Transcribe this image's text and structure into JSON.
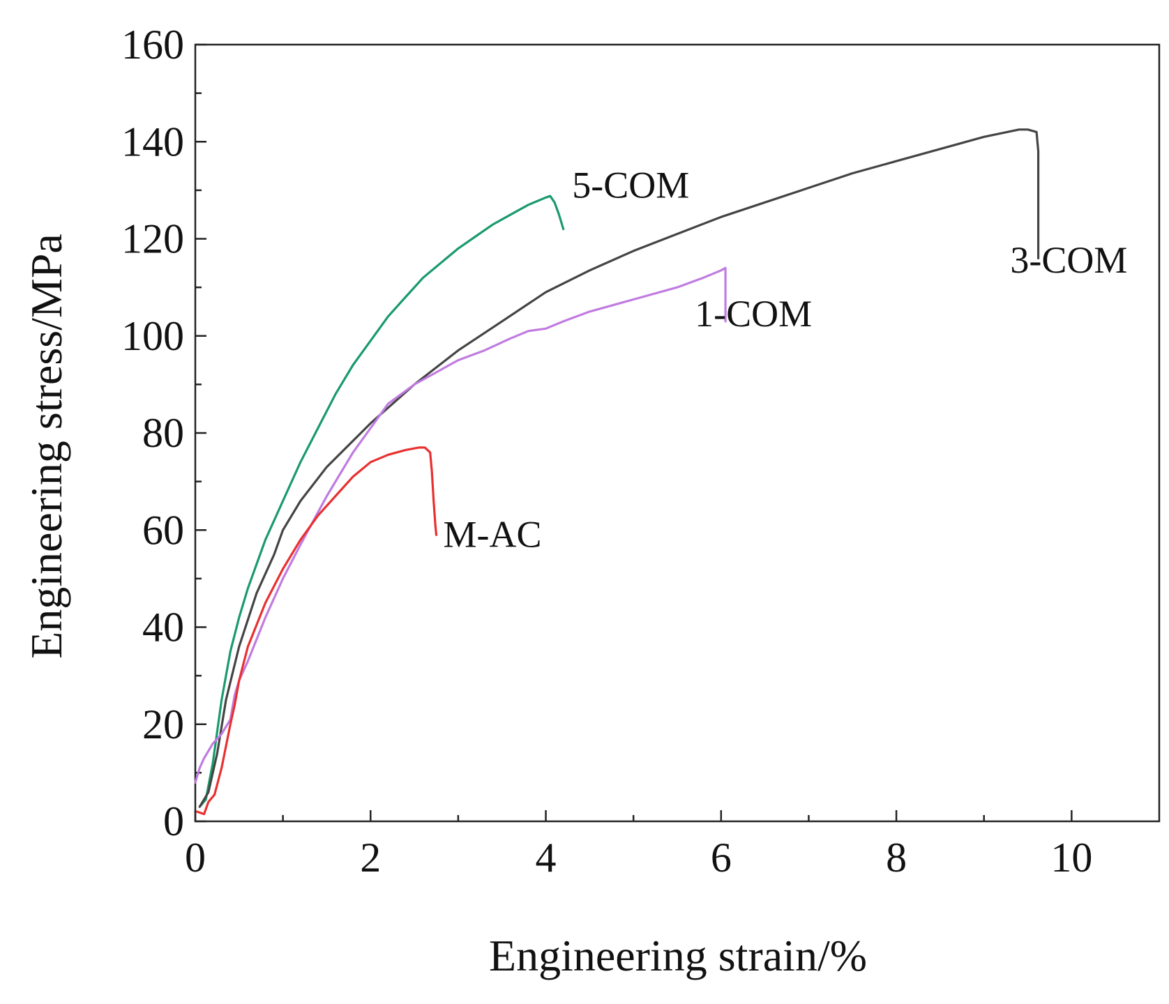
{
  "chart_data": {
    "type": "line",
    "title": "",
    "xlabel": "Engineering strain/%",
    "ylabel": "Engineering stress/MPa",
    "xlim": [
      0,
      11
    ],
    "ylim": [
      0,
      160
    ],
    "x_major_ticks": [
      0,
      2,
      4,
      6,
      8,
      10
    ],
    "x_tick_labels": [
      "0",
      "2",
      "4",
      "6",
      "8",
      "10"
    ],
    "x_minor_ticks": [
      1,
      3,
      5,
      7,
      9
    ],
    "y_major_ticks": [
      0,
      20,
      40,
      60,
      80,
      100,
      120,
      140,
      160
    ],
    "y_tick_labels": [
      "0",
      "20",
      "40",
      "60",
      "80",
      "100",
      "120",
      "140",
      "160"
    ],
    "y_minor_ticks": [
      10,
      30,
      50,
      70,
      90,
      110,
      130,
      150
    ],
    "grid": false,
    "legend": "none",
    "series": [
      {
        "name": "5-COM",
        "color": "#1a9a6c",
        "label_pos": [
          4.3,
          128.5
        ],
        "points": [
          [
            0.05,
            3
          ],
          [
            0.12,
            4.5
          ],
          [
            0.2,
            12
          ],
          [
            0.3,
            25
          ],
          [
            0.4,
            35
          ],
          [
            0.5,
            42
          ],
          [
            0.6,
            48
          ],
          [
            0.8,
            58
          ],
          [
            1.0,
            66
          ],
          [
            1.2,
            74
          ],
          [
            1.4,
            81
          ],
          [
            1.6,
            88
          ],
          [
            1.8,
            94
          ],
          [
            2.0,
            99
          ],
          [
            2.2,
            104
          ],
          [
            2.4,
            108
          ],
          [
            2.6,
            112
          ],
          [
            2.8,
            115
          ],
          [
            3.0,
            118
          ],
          [
            3.2,
            120.5
          ],
          [
            3.4,
            123
          ],
          [
            3.6,
            125
          ],
          [
            3.8,
            127
          ],
          [
            4.0,
            128.5
          ],
          [
            4.05,
            128.8
          ],
          [
            4.1,
            127.5
          ],
          [
            4.15,
            125
          ],
          [
            4.2,
            122
          ]
        ]
      },
      {
        "name": "3-COM",
        "color": "#444444",
        "label_pos": [
          9.3,
          113
        ],
        "points": [
          [
            0.05,
            3
          ],
          [
            0.15,
            6
          ],
          [
            0.25,
            14
          ],
          [
            0.35,
            25
          ],
          [
            0.5,
            36
          ],
          [
            0.7,
            47
          ],
          [
            0.9,
            55
          ],
          [
            1.0,
            60
          ],
          [
            1.2,
            66
          ],
          [
            1.5,
            73
          ],
          [
            2.0,
            82
          ],
          [
            2.5,
            90
          ],
          [
            3.0,
            97
          ],
          [
            3.5,
            103
          ],
          [
            4.0,
            109
          ],
          [
            4.5,
            113.5
          ],
          [
            5.0,
            117.5
          ],
          [
            5.5,
            121
          ],
          [
            6.0,
            124.5
          ],
          [
            6.5,
            127.5
          ],
          [
            7.0,
            130.5
          ],
          [
            7.5,
            133.5
          ],
          [
            8.0,
            136
          ],
          [
            8.5,
            138.5
          ],
          [
            9.0,
            141
          ],
          [
            9.4,
            142.5
          ],
          [
            9.5,
            142.5
          ],
          [
            9.6,
            142
          ],
          [
            9.62,
            138
          ],
          [
            9.62,
            130
          ],
          [
            9.62,
            122
          ],
          [
            9.62,
            116
          ]
        ]
      },
      {
        "name": "1-COM",
        "color": "#c07be0",
        "label_pos": [
          5.7,
          102
        ],
        "points": [
          [
            0.0,
            8
          ],
          [
            0.05,
            11
          ],
          [
            0.1,
            13
          ],
          [
            0.2,
            16
          ],
          [
            0.3,
            18
          ],
          [
            0.4,
            21
          ],
          [
            0.45,
            26
          ],
          [
            0.5,
            29
          ],
          [
            0.6,
            33
          ],
          [
            0.8,
            42
          ],
          [
            1.0,
            50
          ],
          [
            1.2,
            57
          ],
          [
            1.5,
            67
          ],
          [
            1.8,
            76
          ],
          [
            2.0,
            81
          ],
          [
            2.2,
            86
          ],
          [
            2.5,
            90
          ],
          [
            2.8,
            93
          ],
          [
            3.0,
            95
          ],
          [
            3.3,
            97
          ],
          [
            3.6,
            99.5
          ],
          [
            3.8,
            101
          ],
          [
            4.0,
            101.5
          ],
          [
            4.2,
            103
          ],
          [
            4.5,
            105
          ],
          [
            5.0,
            107.5
          ],
          [
            5.5,
            110
          ],
          [
            5.8,
            112
          ],
          [
            6.0,
            113.5
          ],
          [
            6.05,
            114
          ],
          [
            6.05,
            110
          ],
          [
            6.05,
            106
          ],
          [
            6.05,
            103
          ]
        ]
      },
      {
        "name": "M-AC",
        "color": "#e83030",
        "label_pos": [
          2.83,
          56.5
        ],
        "points": [
          [
            0.02,
            2
          ],
          [
            0.1,
            1.5
          ],
          [
            0.15,
            4
          ],
          [
            0.22,
            5.5
          ],
          [
            0.3,
            11
          ],
          [
            0.4,
            20
          ],
          [
            0.45,
            24
          ],
          [
            0.5,
            29
          ],
          [
            0.6,
            36
          ],
          [
            0.8,
            45
          ],
          [
            1.0,
            52
          ],
          [
            1.2,
            58
          ],
          [
            1.4,
            63
          ],
          [
            1.6,
            67
          ],
          [
            1.8,
            71
          ],
          [
            2.0,
            74
          ],
          [
            2.2,
            75.5
          ],
          [
            2.4,
            76.5
          ],
          [
            2.55,
            77
          ],
          [
            2.62,
            77
          ],
          [
            2.68,
            76
          ],
          [
            2.7,
            72
          ],
          [
            2.72,
            66
          ],
          [
            2.74,
            61
          ],
          [
            2.75,
            59
          ]
        ]
      }
    ]
  }
}
